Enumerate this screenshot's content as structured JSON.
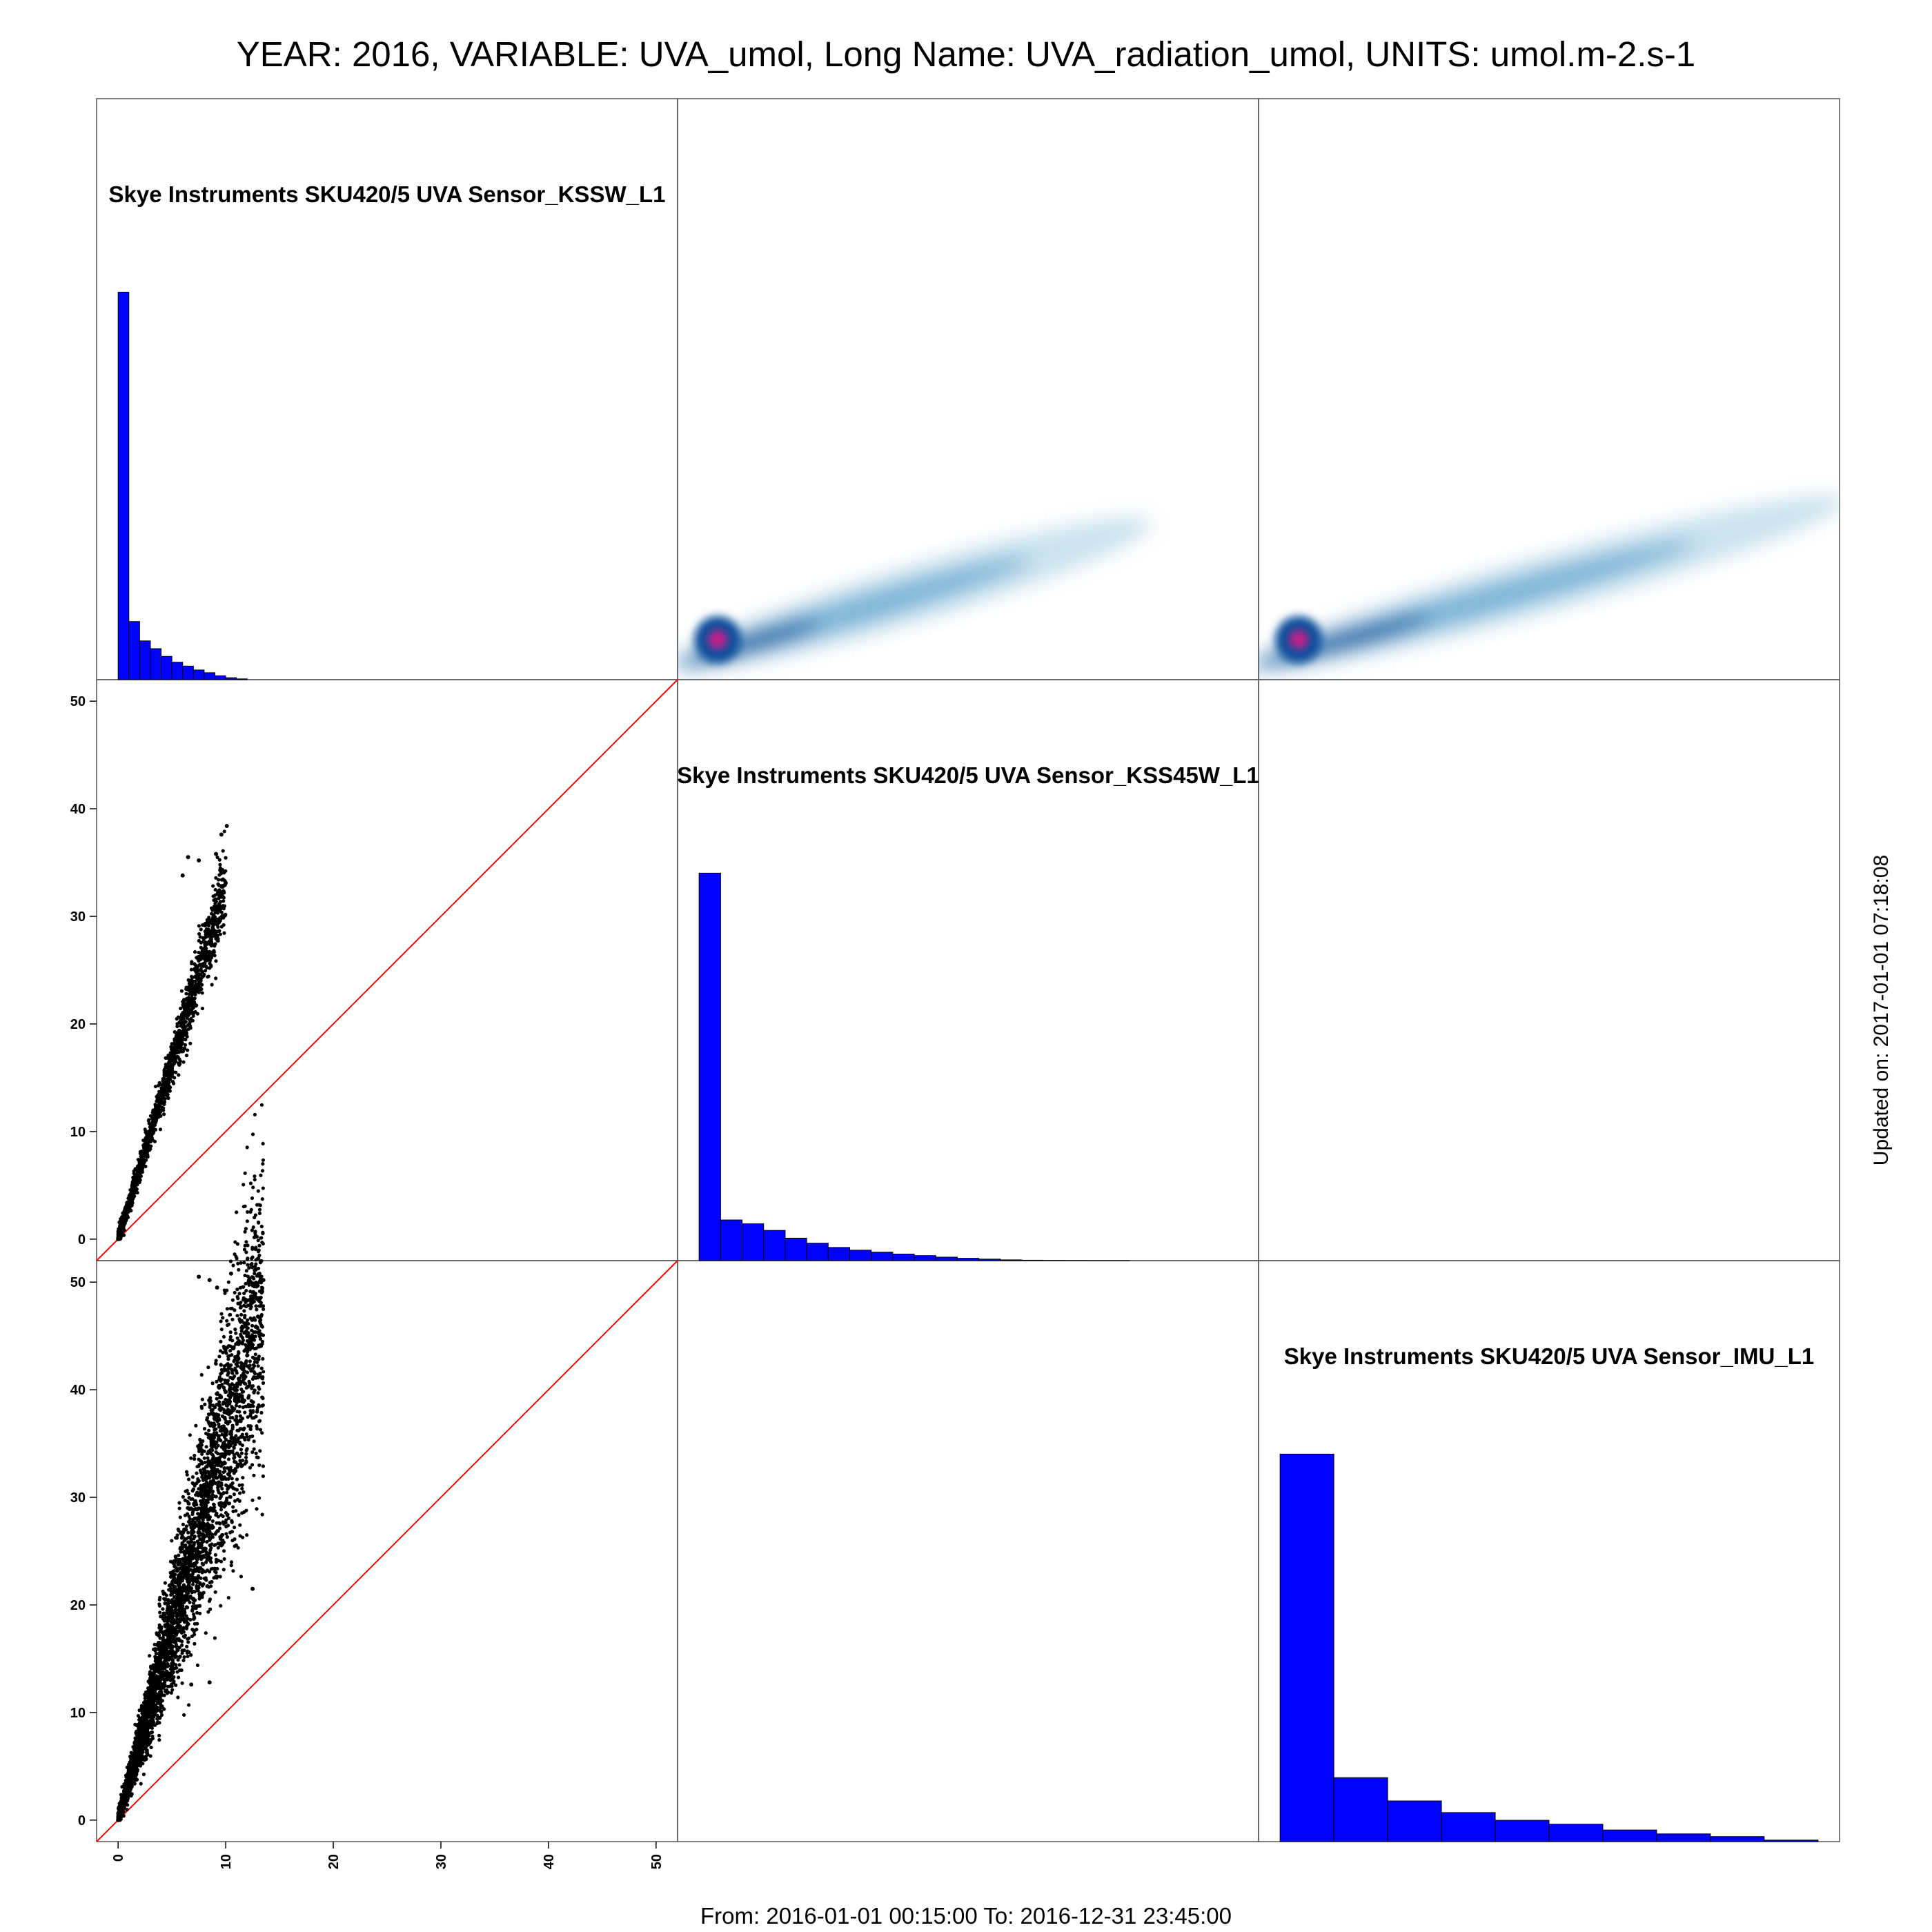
{
  "title": "YEAR: 2016, VARIABLE: UVA_umol, Long Name: UVA_radiation_umol, UNITS: umol.m-2.s-1",
  "footer": "From: 2016-01-01 00:15:00 To: 2016-12-31 23:45:00",
  "updated": "Updated on: 2017-01-01 07:18:08",
  "colors": {
    "histogram_fill": "#0000ff",
    "histogram_edge": "#000000",
    "identity_line": "#ff0000",
    "points": "#000000",
    "density_low": "#9ecae1",
    "density_high": "#08519c",
    "density_peak": "#c51b8a"
  },
  "chart_data": {
    "type": "scatter",
    "layout": "pairs-matrix",
    "variables": [
      "Skye Instruments SKU420/5 UVA Sensor_KSSW_L1",
      "Skye Instruments SKU420/5 UVA Sensor_KSS45W_L1",
      "Skye Instruments SKU420/5 UVA Sensor_IMU_L1"
    ],
    "axis_range": [
      -2,
      52
    ],
    "ticks": [
      0,
      10,
      20,
      30,
      40,
      50
    ],
    "histograms": [
      {
        "variable": "Skye Instruments SKU420/5 UVA Sensor_KSSW_L1",
        "bin_width": 1,
        "bin_start": 0,
        "relative_counts": [
          1.0,
          0.15,
          0.1,
          0.08,
          0.06,
          0.045,
          0.035,
          0.025,
          0.018,
          0.01,
          0.005,
          0.002
        ]
      },
      {
        "variable": "Skye Instruments SKU420/5 UVA Sensor_KSS45W_L1",
        "bin_width": 2,
        "bin_start": 0,
        "relative_counts": [
          1.0,
          0.105,
          0.095,
          0.078,
          0.058,
          0.045,
          0.034,
          0.027,
          0.022,
          0.017,
          0.013,
          0.009,
          0.006,
          0.004,
          0.002,
          0.001,
          0.0005,
          0.0002,
          0.0001,
          0.0001
        ]
      },
      {
        "variable": "Skye Instruments SKU420/5 UVA Sensor_IMU_L1",
        "bin_width": 5,
        "bin_start": 0,
        "relative_counts": [
          1.0,
          0.165,
          0.105,
          0.075,
          0.055,
          0.045,
          0.03,
          0.02,
          0.013,
          0.004
        ]
      }
    ],
    "scatter_panels": [
      {
        "x": "Skye Instruments SKU420/5 UVA Sensor_KSSW_L1",
        "y": "Skye Instruments SKU420/5 UVA Sensor_KSS45W_L1",
        "fit_slope": 3.3,
        "x_max": 10,
        "spread": 0.06,
        "sample_points": [
          [
            0,
            0
          ],
          [
            0.5,
            1.6
          ],
          [
            1,
            3.3
          ],
          [
            2,
            6.6
          ],
          [
            3,
            9.9
          ],
          [
            4,
            13.2
          ],
          [
            5,
            16.6
          ],
          [
            6,
            19.8
          ],
          [
            7,
            23.2
          ],
          [
            8,
            26.5
          ],
          [
            9,
            29.8
          ],
          [
            10,
            33.1
          ]
        ],
        "outliers": [
          [
            6.5,
            35.5
          ],
          [
            7.5,
            35.2
          ],
          [
            9.1,
            35.8
          ],
          [
            9.6,
            37.6
          ],
          [
            10.1,
            38.4
          ],
          [
            6.0,
            33.8
          ]
        ]
      },
      {
        "x": "Skye Instruments SKU420/5 UVA Sensor_KSSW_L1",
        "y": "Skye Instruments SKU420/5 UVA Sensor_IMU_L1",
        "fit_slope": 3.6,
        "x_max": 13.5,
        "spread": 0.16,
        "sample_points": [
          [
            0,
            0
          ],
          [
            1,
            3.6
          ],
          [
            2,
            7.2
          ],
          [
            3,
            10.8
          ],
          [
            4,
            14.4
          ],
          [
            5,
            18
          ],
          [
            6,
            21.6
          ],
          [
            7,
            25.2
          ],
          [
            8,
            28.8
          ],
          [
            9,
            32.4
          ],
          [
            10,
            36
          ],
          [
            11,
            39.6
          ],
          [
            12,
            43.2
          ],
          [
            13,
            46.8
          ]
        ],
        "outliers": [
          [
            7.5,
            50.5
          ],
          [
            8.5,
            50.2
          ],
          [
            10.5,
            50.8
          ],
          [
            9.2,
            49.5
          ],
          [
            12.5,
            21.5
          ],
          [
            8.5,
            12.8
          ],
          [
            6.8,
            12.6
          ],
          [
            13.5,
            50.2
          ]
        ]
      }
    ],
    "density_panels": [
      {
        "x": "Skye Instruments SKU420/5 UVA Sensor_KSS45W_L1",
        "y": "Skye Instruments SKU420/5 UVA Sensor_KSSW_L1",
        "x_max": 40,
        "y_at_x_max": 12
      },
      {
        "x": "Skye Instruments SKU420/5 UVA Sensor_IMU_L1",
        "y": "Skye Instruments SKU420/5 UVA Sensor_KSSW_L1",
        "x_max": 50,
        "y_at_x_max": 14
      }
    ],
    "identity_line": true,
    "legend": "none",
    "grid": false
  }
}
